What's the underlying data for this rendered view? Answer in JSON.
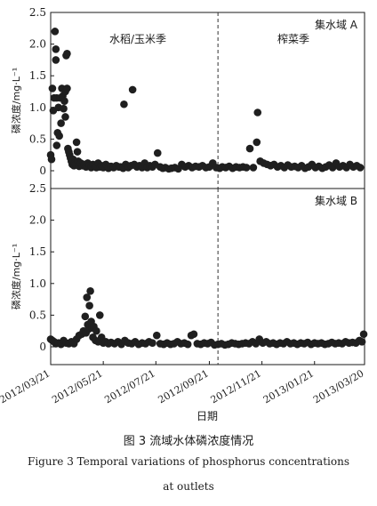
{
  "chart_data": [
    {
      "type": "scatter",
      "panel_label": "集水域 A",
      "ylabel": "磷浓度/mg·L⁻¹",
      "ylim": [
        0,
        2.5
      ],
      "yticks": [
        "0",
        "0.5",
        "1.0",
        "1.5",
        "2.0",
        "2.5"
      ],
      "period_labels": [
        "水稻/玉米季",
        "榨菜季"
      ],
      "divider_date": "2012-10-01",
      "points": [
        [
          "2012-03-21",
          0.25
        ],
        [
          "2012-03-22",
          0.18
        ],
        [
          "2012-03-23",
          1.3
        ],
        [
          "2012-03-24",
          0.95
        ],
        [
          "2012-03-25",
          1.15
        ],
        [
          "2012-03-26",
          2.2
        ],
        [
          "2012-03-27",
          1.92
        ],
        [
          "2012-03-27",
          1.75
        ],
        [
          "2012-03-28",
          1.15
        ],
        [
          "2012-03-28",
          0.4
        ],
        [
          "2012-03-29",
          0.6
        ],
        [
          "2012-03-30",
          1.0
        ],
        [
          "2012-03-31",
          0.55
        ],
        [
          "2012-04-01",
          1.15
        ],
        [
          "2012-04-02",
          0.75
        ],
        [
          "2012-04-03",
          1.3
        ],
        [
          "2012-04-04",
          1.18
        ],
        [
          "2012-04-05",
          0.98
        ],
        [
          "2012-04-06",
          1.1
        ],
        [
          "2012-04-07",
          1.25
        ],
        [
          "2012-04-07",
          0.85
        ],
        [
          "2012-04-08",
          1.82
        ],
        [
          "2012-04-09",
          1.85
        ],
        [
          "2012-04-09",
          1.3
        ],
        [
          "2012-04-10",
          0.35
        ],
        [
          "2012-04-11",
          0.3
        ],
        [
          "2012-04-12",
          0.25
        ],
        [
          "2012-04-13",
          0.2
        ],
        [
          "2012-04-14",
          0.15
        ],
        [
          "2012-04-15",
          0.1
        ],
        [
          "2012-04-16",
          0.18
        ],
        [
          "2012-04-17",
          0.08
        ],
        [
          "2012-04-18",
          0.12
        ],
        [
          "2012-04-19",
          0.1
        ],
        [
          "2012-04-20",
          0.45
        ],
        [
          "2012-04-21",
          0.3
        ],
        [
          "2012-04-22",
          0.15
        ],
        [
          "2012-04-23",
          0.07
        ],
        [
          "2012-04-25",
          0.12
        ],
        [
          "2012-04-27",
          0.08
        ],
        [
          "2012-04-29",
          0.1
        ],
        [
          "2012-05-01",
          0.06
        ],
        [
          "2012-05-03",
          0.12
        ],
        [
          "2012-05-05",
          0.08
        ],
        [
          "2012-05-07",
          0.05
        ],
        [
          "2012-05-09",
          0.1
        ],
        [
          "2012-05-11",
          0.07
        ],
        [
          "2012-05-13",
          0.05
        ],
        [
          "2012-05-15",
          0.12
        ],
        [
          "2012-05-17",
          0.06
        ],
        [
          "2012-05-19",
          0.08
        ],
        [
          "2012-05-21",
          0.05
        ],
        [
          "2012-05-24",
          0.1
        ],
        [
          "2012-05-27",
          0.04
        ],
        [
          "2012-05-30",
          0.07
        ],
        [
          "2012-06-02",
          0.05
        ],
        [
          "2012-06-05",
          0.08
        ],
        [
          "2012-06-08",
          0.06
        ],
        [
          "2012-06-10",
          0.06
        ],
        [
          "2012-06-13",
          0.04
        ],
        [
          "2012-06-14",
          1.05
        ],
        [
          "2012-06-16",
          0.1
        ],
        [
          "2012-06-19",
          0.05
        ],
        [
          "2012-06-22",
          0.08
        ],
        [
          "2012-06-24",
          1.28
        ],
        [
          "2012-06-26",
          0.1
        ],
        [
          "2012-06-29",
          0.06
        ],
        [
          "2012-07-02",
          0.08
        ],
        [
          "2012-07-05",
          0.05
        ],
        [
          "2012-07-08",
          0.12
        ],
        [
          "2012-07-11",
          0.05
        ],
        [
          "2012-07-14",
          0.08
        ],
        [
          "2012-07-17",
          0.06
        ],
        [
          "2012-07-20",
          0.1
        ],
        [
          "2012-07-23",
          0.28
        ],
        [
          "2012-07-26",
          0.06
        ],
        [
          "2012-07-29",
          0.04
        ],
        [
          "2012-08-01",
          0.05
        ],
        [
          "2012-08-05",
          0.03
        ],
        [
          "2012-08-08",
          0.04
        ],
        [
          "2012-08-12",
          0.05
        ],
        [
          "2012-08-16",
          0.03
        ],
        [
          "2012-08-20",
          0.1
        ],
        [
          "2012-08-24",
          0.06
        ],
        [
          "2012-08-28",
          0.08
        ],
        [
          "2012-09-01",
          0.05
        ],
        [
          "2012-09-05",
          0.07
        ],
        [
          "2012-09-09",
          0.06
        ],
        [
          "2012-09-13",
          0.08
        ],
        [
          "2012-09-17",
          0.05
        ],
        [
          "2012-09-21",
          0.06
        ],
        [
          "2012-09-25",
          0.12
        ],
        [
          "2012-09-29",
          0.05
        ],
        [
          "2012-10-03",
          0.04
        ],
        [
          "2012-10-06",
          0.06
        ],
        [
          "2012-10-10",
          0.05
        ],
        [
          "2012-10-14",
          0.07
        ],
        [
          "2012-10-18",
          0.04
        ],
        [
          "2012-10-22",
          0.06
        ],
        [
          "2012-10-26",
          0.05
        ],
        [
          "2012-10-30",
          0.06
        ],
        [
          "2012-11-03",
          0.05
        ],
        [
          "2012-11-07",
          0.35
        ],
        [
          "2012-11-11",
          0.05
        ],
        [
          "2012-11-15",
          0.45
        ],
        [
          "2012-11-16",
          0.92
        ],
        [
          "2012-11-19",
          0.15
        ],
        [
          "2012-11-23",
          0.12
        ],
        [
          "2012-11-27",
          0.1
        ],
        [
          "2012-12-01",
          0.08
        ],
        [
          "2012-12-05",
          0.1
        ],
        [
          "2012-12-09",
          0.06
        ],
        [
          "2012-12-13",
          0.08
        ],
        [
          "2012-12-17",
          0.05
        ],
        [
          "2012-12-21",
          0.09
        ],
        [
          "2012-12-25",
          0.06
        ],
        [
          "2012-12-29",
          0.07
        ],
        [
          "2013-01-02",
          0.05
        ],
        [
          "2013-01-06",
          0.08
        ],
        [
          "2013-01-10",
          0.04
        ],
        [
          "2013-01-14",
          0.06
        ],
        [
          "2013-01-18",
          0.1
        ],
        [
          "2013-01-22",
          0.05
        ],
        [
          "2013-01-26",
          0.07
        ],
        [
          "2013-01-30",
          0.04
        ],
        [
          "2013-02-03",
          0.06
        ],
        [
          "2013-02-07",
          0.09
        ],
        [
          "2013-02-11",
          0.05
        ],
        [
          "2013-02-15",
          0.12
        ],
        [
          "2013-02-19",
          0.06
        ],
        [
          "2013-02-23",
          0.08
        ],
        [
          "2013-02-27",
          0.05
        ],
        [
          "2013-03-03",
          0.1
        ],
        [
          "2013-03-07",
          0.06
        ],
        [
          "2013-03-11",
          0.08
        ],
        [
          "2013-03-15",
          0.05
        ]
      ]
    },
    {
      "type": "scatter",
      "panel_label": "集水域 B",
      "ylabel": "磷浓度/mg·L⁻¹",
      "ylim": [
        0,
        2.5
      ],
      "yticks": [
        "0",
        "0.5",
        "1.0",
        "1.5",
        "2.0",
        "2.5"
      ],
      "divider_date": "2012-10-01",
      "points": [
        [
          "2012-03-21",
          0.12
        ],
        [
          "2012-03-23",
          0.1
        ],
        [
          "2012-03-25",
          0.08
        ],
        [
          "2012-03-27",
          0.05
        ],
        [
          "2012-03-30",
          0.06
        ],
        [
          "2012-04-02",
          0.04
        ],
        [
          "2012-04-05",
          0.1
        ],
        [
          "2012-04-08",
          0.06
        ],
        [
          "2012-04-11",
          0.05
        ],
        [
          "2012-04-14",
          0.08
        ],
        [
          "2012-04-17",
          0.05
        ],
        [
          "2012-04-20",
          0.12
        ],
        [
          "2012-04-23",
          0.18
        ],
        [
          "2012-04-26",
          0.2
        ],
        [
          "2012-04-28",
          0.25
        ],
        [
          "2012-04-30",
          0.48
        ],
        [
          "2012-05-01",
          0.22
        ],
        [
          "2012-05-02",
          0.78
        ],
        [
          "2012-05-03",
          0.35
        ],
        [
          "2012-05-04",
          0.28
        ],
        [
          "2012-05-05",
          0.65
        ],
        [
          "2012-05-06",
          0.88
        ],
        [
          "2012-05-07",
          0.4
        ],
        [
          "2012-05-08",
          0.3
        ],
        [
          "2012-05-09",
          0.15
        ],
        [
          "2012-05-10",
          0.32
        ],
        [
          "2012-05-12",
          0.1
        ],
        [
          "2012-05-13",
          0.25
        ],
        [
          "2012-05-15",
          0.08
        ],
        [
          "2012-05-17",
          0.5
        ],
        [
          "2012-05-19",
          0.15
        ],
        [
          "2012-05-21",
          0.06
        ],
        [
          "2012-05-24",
          0.08
        ],
        [
          "2012-05-27",
          0.05
        ],
        [
          "2012-05-30",
          0.07
        ],
        [
          "2012-06-03",
          0.05
        ],
        [
          "2012-06-07",
          0.08
        ],
        [
          "2012-06-11",
          0.04
        ],
        [
          "2012-06-15",
          0.1
        ],
        [
          "2012-06-19",
          0.06
        ],
        [
          "2012-06-23",
          0.05
        ],
        [
          "2012-06-27",
          0.08
        ],
        [
          "2012-07-01",
          0.04
        ],
        [
          "2012-07-05",
          0.06
        ],
        [
          "2012-07-09",
          0.05
        ],
        [
          "2012-07-13",
          0.08
        ],
        [
          "2012-07-17",
          0.06
        ],
        [
          "2012-07-22",
          0.18
        ],
        [
          "2012-07-26",
          0.05
        ],
        [
          "2012-07-30",
          0.04
        ],
        [
          "2012-08-03",
          0.06
        ],
        [
          "2012-08-07",
          0.04
        ],
        [
          "2012-08-11",
          0.05
        ],
        [
          "2012-08-15",
          0.08
        ],
        [
          "2012-08-19",
          0.05
        ],
        [
          "2012-08-23",
          0.06
        ],
        [
          "2012-08-27",
          0.04
        ],
        [
          "2012-08-31",
          0.18
        ],
        [
          "2012-09-03",
          0.2
        ],
        [
          "2012-09-07",
          0.05
        ],
        [
          "2012-09-11",
          0.04
        ],
        [
          "2012-09-15",
          0.06
        ],
        [
          "2012-09-19",
          0.05
        ],
        [
          "2012-09-23",
          0.07
        ],
        [
          "2012-09-27",
          0.03
        ],
        [
          "2012-10-01",
          0.04
        ],
        [
          "2012-10-05",
          0.05
        ],
        [
          "2012-10-09",
          0.03
        ],
        [
          "2012-10-13",
          0.04
        ],
        [
          "2012-10-17",
          0.06
        ],
        [
          "2012-10-21",
          0.05
        ],
        [
          "2012-10-25",
          0.04
        ],
        [
          "2012-10-29",
          0.05
        ],
        [
          "2012-11-02",
          0.06
        ],
        [
          "2012-11-06",
          0.05
        ],
        [
          "2012-11-10",
          0.08
        ],
        [
          "2012-11-14",
          0.05
        ],
        [
          "2012-11-18",
          0.12
        ],
        [
          "2012-11-22",
          0.06
        ],
        [
          "2012-11-26",
          0.08
        ],
        [
          "2012-11-30",
          0.05
        ],
        [
          "2012-12-04",
          0.06
        ],
        [
          "2012-12-08",
          0.04
        ],
        [
          "2012-12-12",
          0.06
        ],
        [
          "2012-12-16",
          0.05
        ],
        [
          "2012-12-20",
          0.08
        ],
        [
          "2012-12-24",
          0.05
        ],
        [
          "2012-12-28",
          0.06
        ],
        [
          "2013-01-01",
          0.04
        ],
        [
          "2013-01-05",
          0.06
        ],
        [
          "2013-01-09",
          0.05
        ],
        [
          "2013-01-13",
          0.07
        ],
        [
          "2013-01-17",
          0.04
        ],
        [
          "2013-01-21",
          0.06
        ],
        [
          "2013-01-25",
          0.05
        ],
        [
          "2013-01-29",
          0.06
        ],
        [
          "2013-02-02",
          0.04
        ],
        [
          "2013-02-06",
          0.05
        ],
        [
          "2013-02-10",
          0.07
        ],
        [
          "2013-02-14",
          0.05
        ],
        [
          "2013-02-18",
          0.06
        ],
        [
          "2013-02-22",
          0.05
        ],
        [
          "2013-02-26",
          0.08
        ],
        [
          "2013-03-02",
          0.06
        ],
        [
          "2013-03-06",
          0.07
        ],
        [
          "2013-03-10",
          0.06
        ],
        [
          "2013-03-14",
          0.1
        ],
        [
          "2013-03-17",
          0.08
        ],
        [
          "2013-03-19",
          0.2
        ]
      ]
    }
  ],
  "x_axis": {
    "xlabel": "日期",
    "xlim": [
      "2012-03-21",
      "2013-03-20"
    ],
    "ticks": [
      "2012/03/21",
      "2012/05/21",
      "2012/07/21",
      "2012/09/21",
      "2012/11/21",
      "2013/01/21",
      "2013/03/20"
    ]
  },
  "caption": {
    "cn": "图 3 流域水体磷浓度情况",
    "en_line1": "Figure 3 Temporal variations of phosphorus concentrations",
    "en_line2": "at outlets"
  },
  "colors": {
    "marker": "#1f1f1f",
    "axis": "#1a1a1a",
    "divider": "#333333"
  }
}
